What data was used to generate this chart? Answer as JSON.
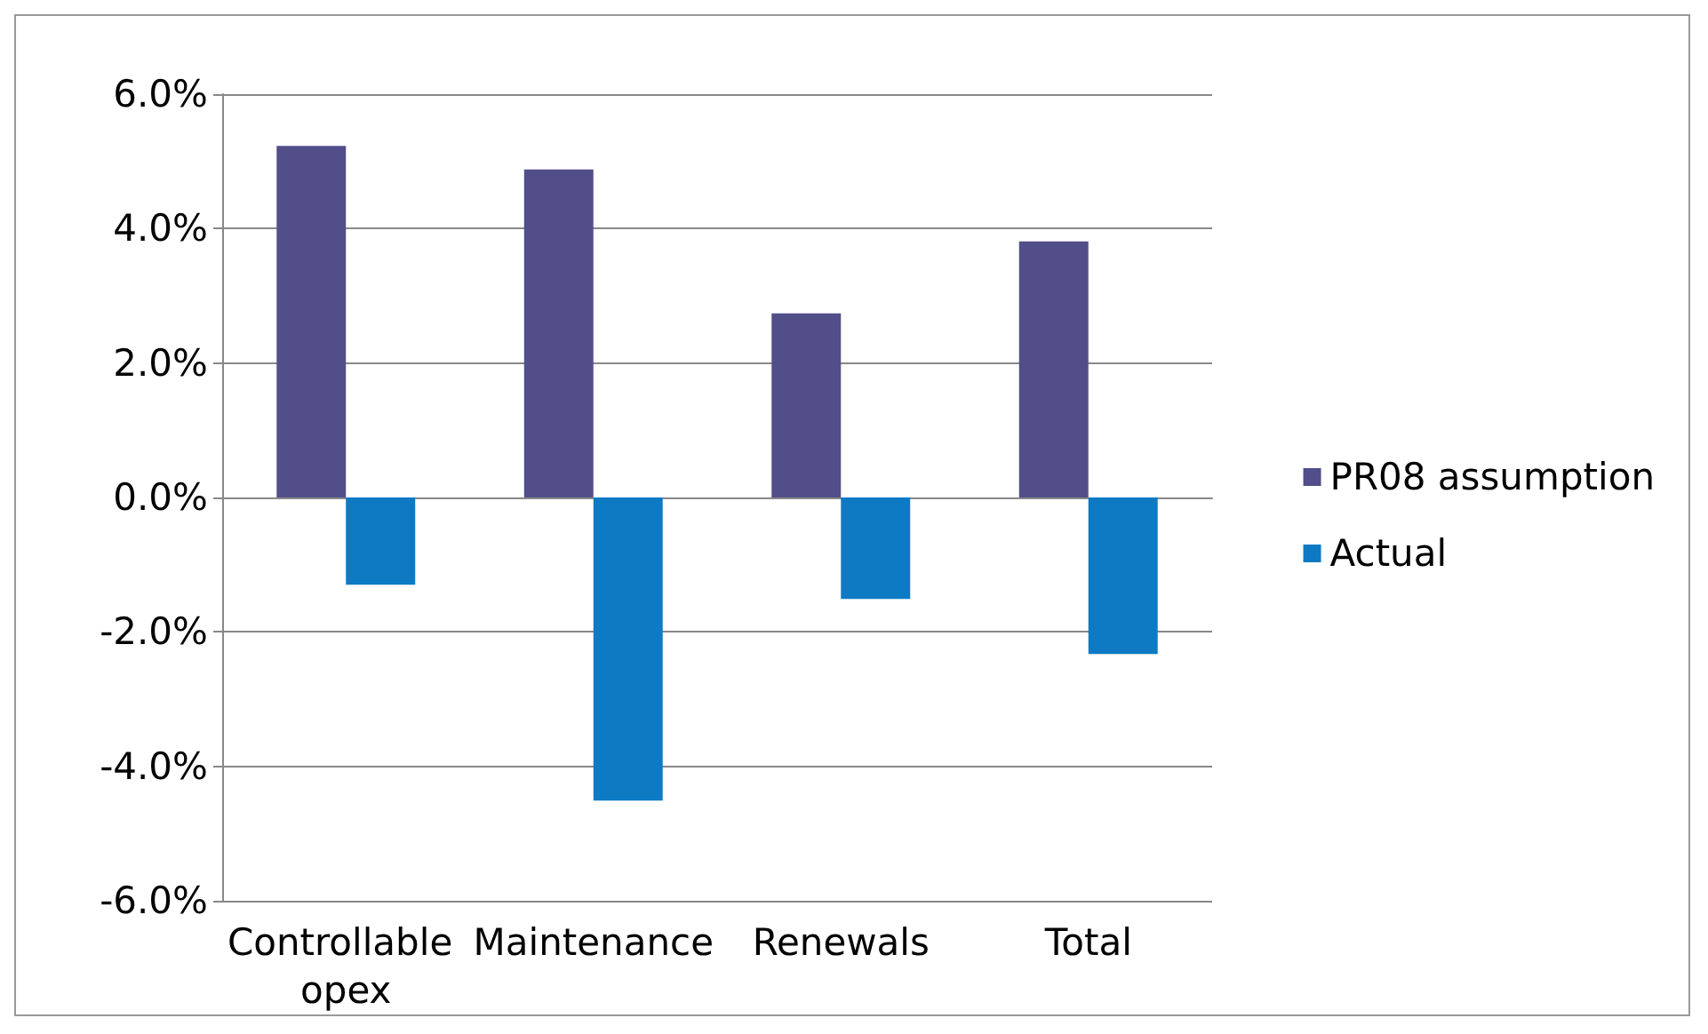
{
  "chart_data": {
    "type": "bar",
    "categories": [
      "Controllable opex",
      "Maintenance",
      "Renewals",
      "Total"
    ],
    "series": [
      {
        "name": "PR08 assumption",
        "color": "#524e8a",
        "values": [
          5.23,
          4.88,
          2.74,
          3.81
        ]
      },
      {
        "name": "Actual",
        "color": "#0e7ac4",
        "values": [
          -1.3,
          -4.51,
          -1.51,
          -2.33
        ]
      }
    ],
    "ylim": [
      -6,
      6
    ],
    "yticks": [
      {
        "value": -6,
        "label": "-6.0%"
      },
      {
        "value": -4,
        "label": "-4.0%"
      },
      {
        "value": -2,
        "label": "-2.0%"
      },
      {
        "value": 0,
        "label": "0.0%"
      },
      {
        "value": 2,
        "label": "2.0%"
      },
      {
        "value": 4,
        "label": "4.0%"
      },
      {
        "value": 6,
        "label": "6.0%"
      }
    ],
    "grid": "y",
    "legend": "right"
  }
}
